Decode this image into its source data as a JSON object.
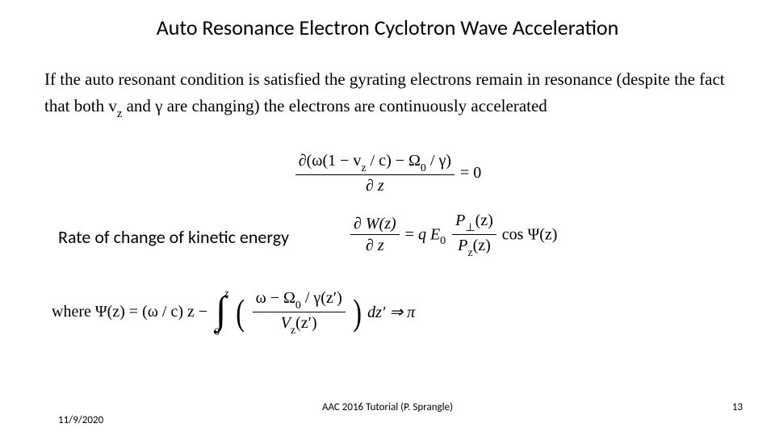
{
  "title": "Auto Resonance Electron Cyclotron Wave Acceleration",
  "paragraph": {
    "p1": "If the auto resonant condition is satisfied the gyrating electrons remain in resonance (despite the fact that both v",
    "sub_z": "z",
    "p2": " and γ are changing) the electrons are continuously accelerated"
  },
  "eq1": {
    "num": "∂(ω(1 − v",
    "num_sub": "z",
    "num2": " / c) − Ω",
    "num_sub0": "0",
    "num3": " / γ)",
    "den": "∂ z",
    "rhs": " = 0"
  },
  "rate_label": "Rate of change  of kinetic energy",
  "eq2": {
    "lhs_num": "∂ W(z)",
    "lhs_den": "∂ z",
    "eq": " = ",
    "q": "q ",
    "E": "E",
    "E_sub": "0",
    "frac2_num_P": "P",
    "frac2_num_sub": "⊥",
    "frac2_num_arg": "(z)",
    "frac2_den_P": "P",
    "frac2_den_sub": "z",
    "frac2_den_arg": "(z)",
    "cos": " cos Ψ(z)"
  },
  "eq3": {
    "where": "where   Ψ(z)  =  (ω / c) z   −  ",
    "int_upper": "z",
    "int_lower": "0",
    "inner_num": "ω   −   Ω",
    "inner_num_sub": "0",
    "inner_num2": " / γ(z′)",
    "inner_den_V": "V",
    "inner_den_sub": "z",
    "inner_den_arg": "(z′)",
    "dz": " dz′  ⇒  π"
  },
  "footer": {
    "date": "11/9/2020",
    "center": "AAC 2016 Tutorial (P. Sprangle)",
    "page": "13"
  }
}
